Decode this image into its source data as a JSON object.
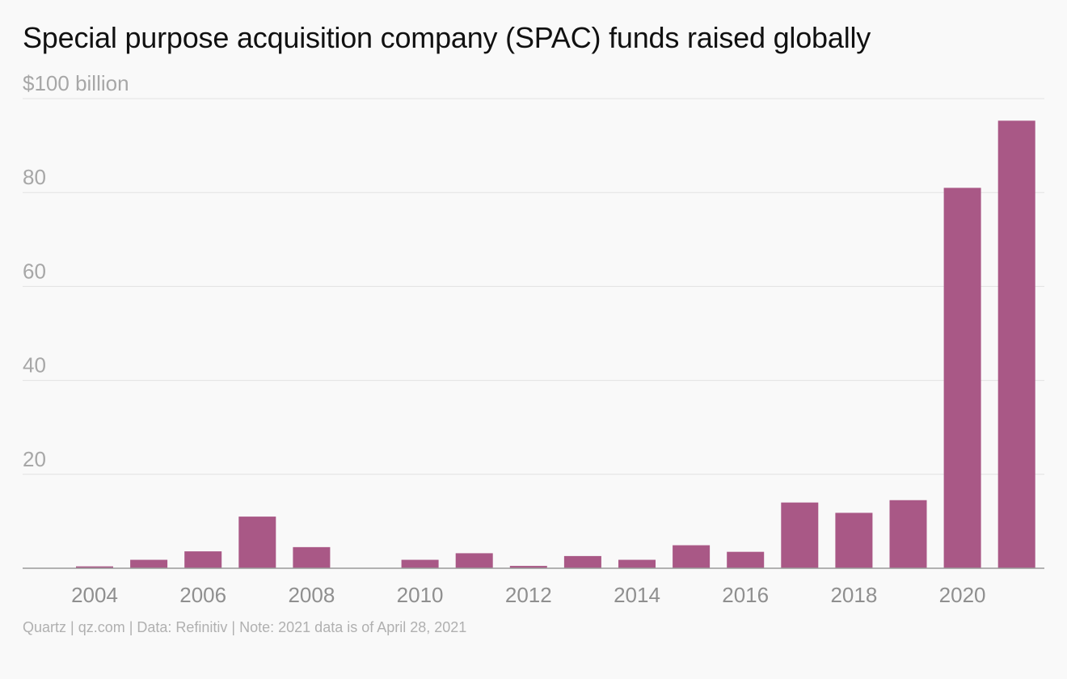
{
  "chart_data": {
    "type": "bar",
    "title": "Special purpose acquisition company (SPAC) funds raised globally",
    "y_top_label": "$100 billion",
    "categories": [
      "2004",
      "2005",
      "2006",
      "2007",
      "2008",
      "2009",
      "2010",
      "2011",
      "2012",
      "2013",
      "2014",
      "2015",
      "2016",
      "2017",
      "2018",
      "2019",
      "2020",
      "2021"
    ],
    "values": [
      0.4,
      1.8,
      3.6,
      11.0,
      4.5,
      0,
      1.8,
      3.2,
      0.5,
      2.6,
      1.8,
      4.9,
      3.5,
      14.0,
      11.8,
      14.5,
      81.0,
      95.3
    ],
    "x_tick_labels": [
      "2004",
      "2006",
      "2008",
      "2010",
      "2012",
      "2014",
      "2016",
      "2018",
      "2020"
    ],
    "y_ticks": [
      20,
      40,
      60,
      80
    ],
    "ylim": [
      0,
      100
    ],
    "grid": true,
    "bar_color": "#a95886",
    "source": "Quartz | qz.com | Data: Refinitiv | Note: 2021 data is of April 28, 2021"
  }
}
